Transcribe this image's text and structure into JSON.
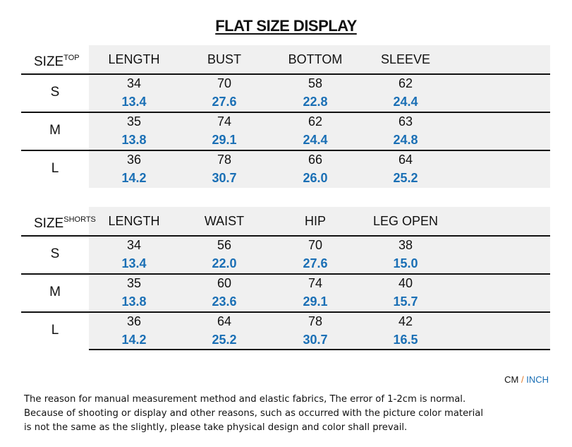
{
  "title": "FLAT SIZE DISPLAY",
  "tables": [
    {
      "size_label": "SIZE",
      "size_sup": "TOP",
      "columns": [
        "LENGTH",
        "BUST",
        "BOTTOM",
        "SLEEVE"
      ],
      "rows": [
        {
          "size": "S",
          "cm": [
            "34",
            "70",
            "58",
            "62"
          ],
          "inch": [
            "13.4",
            "27.6",
            "22.8",
            "24.4"
          ]
        },
        {
          "size": "M",
          "cm": [
            "35",
            "74",
            "62",
            "63"
          ],
          "inch": [
            "13.8",
            "29.1",
            "24.4",
            "24.8"
          ]
        },
        {
          "size": "L",
          "cm": [
            "36",
            "78",
            "66",
            "64"
          ],
          "inch": [
            "14.2",
            "30.7",
            "26.0",
            "25.2"
          ]
        }
      ]
    },
    {
      "size_label": "SIZE",
      "size_sup": "SHORTS",
      "columns": [
        "LENGTH",
        "WAIST",
        "HIP",
        "LEG OPEN"
      ],
      "rows": [
        {
          "size": "S",
          "cm": [
            "34",
            "56",
            "70",
            "38"
          ],
          "inch": [
            "13.4",
            "22.0",
            "27.6",
            "15.0"
          ]
        },
        {
          "size": "M",
          "cm": [
            "35",
            "60",
            "74",
            "40"
          ],
          "inch": [
            "13.8",
            "23.6",
            "29.1",
            "15.7"
          ]
        },
        {
          "size": "L",
          "cm": [
            "36",
            "64",
            "78",
            "42"
          ],
          "inch": [
            "14.2",
            "25.2",
            "30.7",
            "16.5"
          ]
        }
      ]
    }
  ],
  "units": {
    "cm": "CM",
    "slash": "/",
    "inch": "INCH"
  },
  "colors": {
    "inch": "#1a6fb5",
    "slash": "#e07a2a",
    "grey_bg": "#f0f0f0"
  },
  "note": [
    "The reason for manual measurement method and elastic fabrics, The error of 1-2cm is normal.",
    "Because of shooting or display and other reasons, such as occurred with the picture color material",
    "is not the same as the slightly, please take physical design and color shall prevail."
  ]
}
